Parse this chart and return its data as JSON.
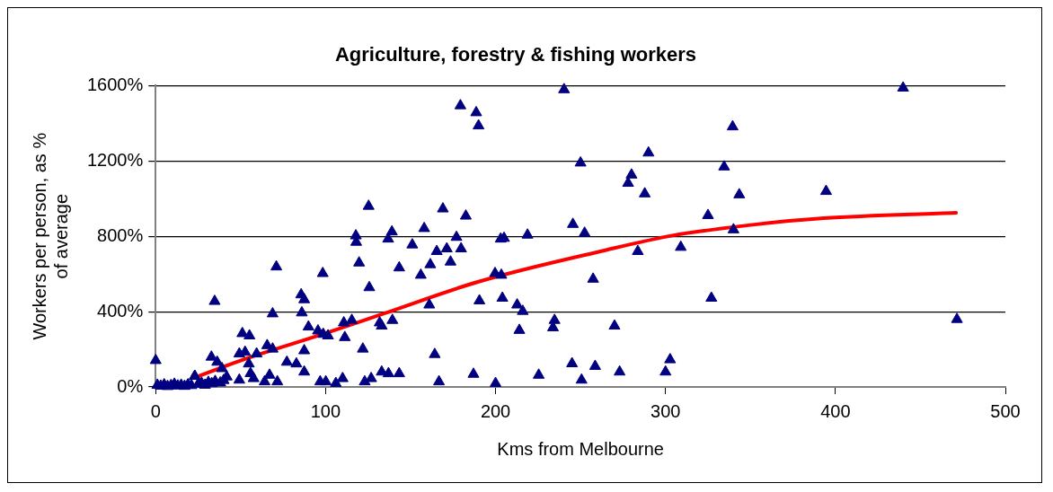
{
  "chart_data": {
    "type": "scatter",
    "title": "Agriculture, forestry & fishing workers",
    "xlabel": "Kms from Melbourne",
    "ylabel": "Workers per person, as % of average",
    "xlim": [
      0,
      500
    ],
    "xticks": [
      0,
      100,
      200,
      300,
      400,
      500
    ],
    "ylim": [
      0,
      1600
    ],
    "yticks": [
      {
        "value": 0,
        "label": "0%"
      },
      {
        "value": 400,
        "label": "400%"
      },
      {
        "value": 800,
        "label": "800%"
      },
      {
        "value": 1200,
        "label": "1200%"
      },
      {
        "value": 1600,
        "label": "1600%"
      }
    ],
    "grid": "y",
    "legend": false,
    "series": [
      {
        "color": "#000080",
        "marker": "triangle",
        "x": [
          0,
          1,
          3,
          5,
          7,
          9,
          11,
          13,
          15,
          17,
          19,
          21,
          23,
          25,
          27,
          29,
          31,
          33,
          35,
          38,
          40,
          23,
          34.7,
          32.8,
          36.2,
          39,
          41.8,
          49.2,
          49.2,
          51,
          52.6,
          54.8,
          55.2,
          55.8,
          57.6,
          59.4,
          64.1,
          65.6,
          67,
          68.8,
          68.8,
          71,
          71.6,
          77.2,
          82.8,
          85.6,
          86,
          87.4,
          87.4,
          87.4,
          89.9,
          95.5,
          96.8,
          98.3,
          98.6,
          100.1,
          101.4,
          106,
          110,
          110.7,
          111.3,
          115.4,
          117.8,
          118,
          119.7,
          121.9,
          123,
          125.3,
          125.7,
          126.8,
          131.8,
          133,
          133,
          136.8,
          137,
          139,
          139.3,
          143.3,
          143.3,
          151,
          156,
          158,
          161,
          161.6,
          164.2,
          165.4,
          166.7,
          169,
          171.3,
          173.5,
          177,
          179.3,
          179.7,
          182.5,
          187,
          188.6,
          190,
          190.5,
          199.7,
          200,
          203,
          203.4,
          204,
          205,
          212.7,
          214,
          216,
          218.8,
          225.4,
          233.8,
          234.7,
          240.3,
          245,
          245.5,
          250,
          250.6,
          252.4,
          257.4,
          258.6,
          270,
          273,
          278,
          280,
          283.7,
          287.8,
          290,
          300,
          302.7,
          309,
          325,
          327,
          334.5,
          339.5,
          340,
          343.4,
          394.5,
          439.8,
          471.5
        ],
        "values": [
          141,
          10,
          5,
          12,
          3,
          8,
          15,
          6,
          10,
          4,
          12,
          8,
          57,
          15,
          20,
          10,
          25,
          18,
          30,
          22,
          35,
          57,
          455,
          159,
          132,
          98,
          54,
          176,
          37,
          284,
          185,
          123,
          272,
          72,
          45,
          176,
          28,
          220,
          63,
          202,
          389,
          638,
          28,
          132,
          123,
          490,
          394,
          464,
          193,
          80,
          319,
          298,
          28,
          603,
          280,
          28,
          272,
          19,
          45,
          341,
          263,
          354,
          803,
          769,
          659,
          202,
          28,
          960,
          528,
          45,
          341,
          80,
          324,
          786,
          71,
          824,
          354,
          633,
          71,
          755,
          594,
          842,
          436,
          650,
          173,
          720,
          28,
          946,
          734,
          664,
          795,
          1494,
          734,
          908,
          68,
          1457,
          1387,
          458,
          603,
          19,
          786,
          594,
          472,
          790,
          436,
          301,
          402,
          807,
          63,
          315,
          354,
          1579,
          124,
          864,
          1190,
          37,
          817,
          573,
          110,
          324,
          80,
          1082,
          1126,
          720,
          1026,
          1243,
          80,
          145,
          742,
          911,
          472,
          1169,
          1382,
          835,
          1021,
          1039,
          1588,
          359
        ]
      },
      {
        "type": "line",
        "color": "#ff0000",
        "marker": "none",
        "line_style": "solid",
        "x": [
          23,
          50,
          100,
          134,
          190,
          264,
          304,
          350,
          393,
          471
        ],
        "values": [
          50,
          140,
          285,
          389,
          559,
          725,
          804,
          860,
          896,
          925
        ]
      }
    ]
  }
}
